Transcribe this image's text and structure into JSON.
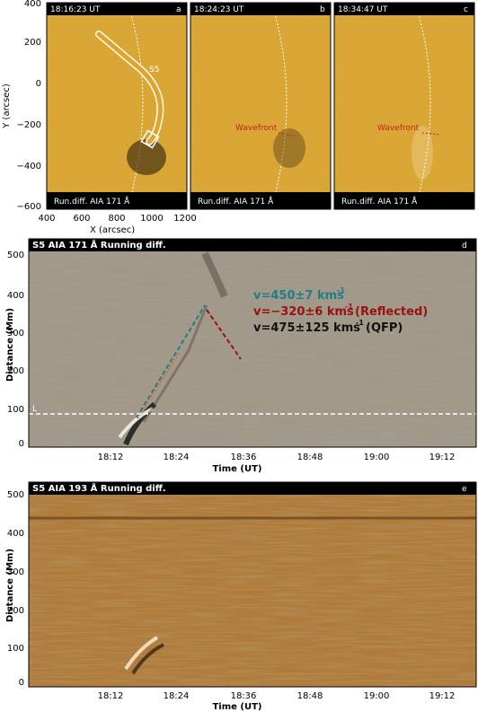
{
  "panels": {
    "a": {
      "time": "18:16:23 UT",
      "letter": "a",
      "footer": "Run.diff.   AIA 171 Å",
      "slit_label": "S5"
    },
    "b": {
      "time": "18:24:23 UT",
      "letter": "b",
      "footer": "Run.diff.   AIA 171 Å",
      "wave_label": "Wavefront"
    },
    "c": {
      "time": "18:34:47 UT",
      "letter": "c",
      "footer": "Run.diff.   AIA 171 Å",
      "wave_label": "Wavefront"
    },
    "d": {
      "title": "S5 AIA 171 Å Running diff.",
      "letter": "d",
      "line_label": "L",
      "ann1": "v=450±7 kms",
      "ann2": "v=−320±6 kms",
      "ann2_suffix": "(Reflected)",
      "ann3": "v=475±125 kms",
      "ann3_suffix": "(QFP)",
      "sup": "-1",
      "colors": {
        "ann1": "#1e7f86",
        "ann2": "#9b1010",
        "ann3": "#111111"
      }
    },
    "e": {
      "title": "S5 AIA 193 Å Running diff.",
      "letter": "e"
    }
  },
  "axes_top": {
    "ylabel": "Y (arcsec)",
    "xlabel": "X (arcsec)",
    "yticks": [
      "400",
      "200",
      "0",
      "−200",
      "−400",
      "−600"
    ],
    "xticks": [
      "400",
      "600",
      "800",
      "1000",
      "1200"
    ]
  },
  "axes_time": {
    "ylabel": "Distance (Mm)",
    "xlabel": "Time (UT)",
    "yticks": [
      "500",
      "400",
      "300",
      "200",
      "100",
      "0"
    ],
    "xticks": [
      "18:12",
      "18:24",
      "18:36",
      "18:48",
      "19:00",
      "19:12"
    ]
  },
  "chart_data": [
    {
      "type": "image",
      "panel": "d",
      "xlabel": "Time (UT)",
      "ylabel": "Distance (Mm)",
      "ylim": [
        0,
        500
      ],
      "x_ticks": [
        "18:12",
        "18:24",
        "18:36",
        "18:48",
        "19:00",
        "19:12"
      ],
      "reference_line_distance_Mm": 85,
      "fits": [
        {
          "label": "v=450±7 km/s",
          "start": [
            "18:17",
            80
          ],
          "end": [
            "18:29",
            370
          ]
        },
        {
          "label": "v=−320±6 km/s (Reflected)",
          "start": [
            "18:29",
            370
          ],
          "end": [
            "18:35",
            240
          ]
        },
        {
          "label": "v=475±125 km/s (QFP)",
          "start": [
            "18:17",
            80
          ],
          "end": [
            "18:25",
            300
          ]
        }
      ]
    },
    {
      "type": "image",
      "panel": "e",
      "xlabel": "Time (UT)",
      "ylabel": "Distance (Mm)",
      "ylim": [
        0,
        500
      ],
      "x_ticks": [
        "18:12",
        "18:24",
        "18:36",
        "18:48",
        "19:00",
        "19:12"
      ]
    }
  ]
}
